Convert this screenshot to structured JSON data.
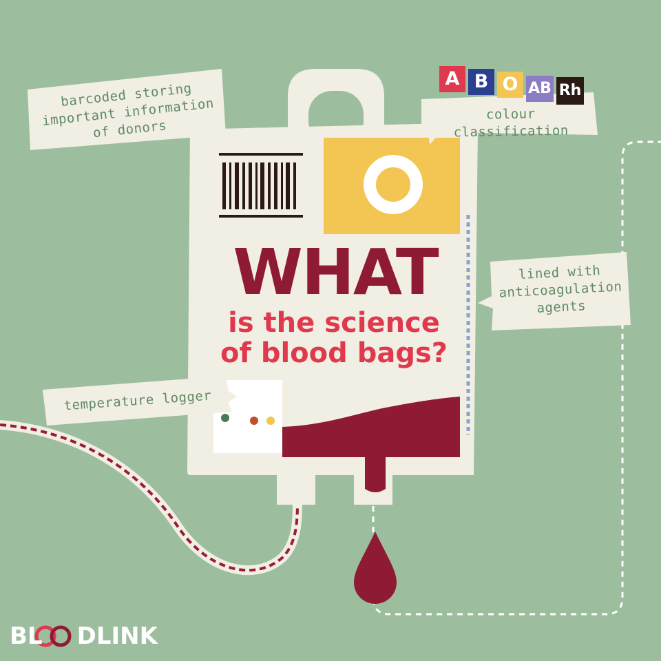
{
  "title": {
    "main": "WHAT",
    "line1": "is the science",
    "line2": "of blood bags?"
  },
  "callouts": {
    "barcode": [
      "barcoded storing",
      "important information",
      "of donors"
    ],
    "colour": "colour classification",
    "anticoag": [
      "lined with",
      "anticoagulation",
      "agents"
    ],
    "temperature": "temperature logger"
  },
  "blood_types": [
    {
      "label": "A",
      "color": "#e0394e"
    },
    {
      "label": "B",
      "color": "#2a3f8f"
    },
    {
      "label": "O",
      "color": "#f3c552"
    },
    {
      "label": "AB",
      "color": "#8b7cc4"
    },
    {
      "label": "Rh",
      "color": "#2b1a14"
    }
  ],
  "bag_label_letter": "O",
  "brand": {
    "name_prefix": "BL",
    "name_suffix": "DLINK",
    "ring_colors": [
      "#e0394e",
      "#8e1a34"
    ]
  },
  "colors": {
    "background": "#9dbd9f",
    "bag": "#f1eee3",
    "blood": "#8e1a34",
    "accent_red": "#e0394e",
    "label_yellow": "#f3c552",
    "callout_text": "#5f8a66"
  },
  "icons": [
    "barcode-icon",
    "blood-drop-icon",
    "tube-icon",
    "hanger-loop-icon",
    "temperature-logger-icon"
  ]
}
